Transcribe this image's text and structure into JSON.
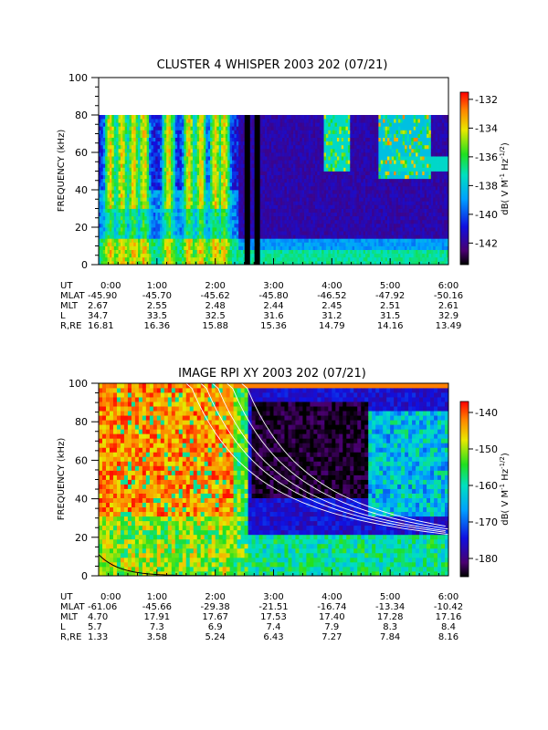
{
  "chart_data": [
    {
      "type": "heatmap",
      "title": "CLUSTER 4 WHISPER 2003 202 (07/21)",
      "ylabel": "FREQUENCY (kHz)",
      "ylim": [
        0,
        100
      ],
      "xlim_hours": [
        0,
        6
      ],
      "y_ticks": [
        "0",
        "20",
        "40",
        "60",
        "80",
        "100"
      ],
      "x_ticks": [
        "0:00",
        "1:00",
        "2:00",
        "3:00",
        "4:00",
        "5:00",
        "6:00"
      ],
      "colorbar": {
        "label": "dB( V M⁻¹ Hz⁻¹ᐟ²)",
        "label_parts": [
          "dB( V M",
          "-1",
          " Hz",
          "-1/2",
          ")"
        ],
        "range": [
          -143.5,
          -131.5
        ],
        "ticks": [
          "-132",
          "-134",
          "-136",
          "-138",
          "-140",
          "-142"
        ],
        "tick_values": [
          -132,
          -134,
          -136,
          -138,
          -140,
          -142
        ]
      },
      "data_top_khz": 80,
      "data_gaps_hours": [
        2.55,
        2.72
      ],
      "ephemeris": {
        "row_labels": [
          "UT",
          "MLAT",
          "MLT",
          "L",
          "R,RE"
        ],
        "UT": [
          "0:00",
          "1:00",
          "2:00",
          "3:00",
          "4:00",
          "5:00",
          "6:00"
        ],
        "MLAT": [
          "-45.90",
          "-45.70",
          "-45.62",
          "-45.80",
          "-46.52",
          "-47.92",
          "-50.16"
        ],
        "MLT": [
          "2.67",
          "2.55",
          "2.48",
          "2.44",
          "2.45",
          "2.51",
          "2.61"
        ],
        "L": [
          "34.7",
          "33.5",
          "32.5",
          "31.6",
          "31.2",
          "31.5",
          "32.9"
        ],
        "R,RE": [
          "16.81",
          "16.36",
          "15.88",
          "15.36",
          "14.79",
          "14.16",
          "13.49"
        ]
      }
    },
    {
      "type": "heatmap",
      "title": "IMAGE RPI XY 2003 202 (07/21)",
      "ylabel": "FREQUENCY (kHz)",
      "ylim": [
        0,
        100
      ],
      "xlim_hours": [
        0,
        6
      ],
      "y_ticks": [
        "0",
        "20",
        "40",
        "60",
        "80",
        "100"
      ],
      "x_ticks": [
        "0:00",
        "1:00",
        "2:00",
        "3:00",
        "4:00",
        "5:00",
        "6:00"
      ],
      "colorbar": {
        "label_parts": [
          "dB( V M",
          "-1",
          " Hz",
          "-1/2",
          ")"
        ],
        "range": [
          -185,
          -137
        ],
        "ticks": [
          "-140",
          "-150",
          "-160",
          "-170",
          "-180"
        ],
        "tick_values": [
          -140,
          -150,
          -160,
          -170,
          -180
        ]
      },
      "ephemeris": {
        "row_labels": [
          "UT",
          "MLAT",
          "MLT",
          "L",
          "R,RE"
        ],
        "UT": [
          "0:00",
          "1:00",
          "2:00",
          "3:00",
          "4:00",
          "5:00",
          "6:00"
        ],
        "MLAT": [
          "-61.06",
          "-45.66",
          "-29.38",
          "-21.51",
          "-16.74",
          "-13.34",
          "-10.42"
        ],
        "MLT": [
          "4.70",
          "17.91",
          "17.67",
          "17.53",
          "17.40",
          "17.28",
          "17.16"
        ],
        "L": [
          "5.7",
          "7.3",
          "6.9",
          "7.4",
          "7.9",
          "8.3",
          "8.4"
        ],
        "R,RE": [
          "1.33",
          "3.58",
          "5.24",
          "6.43",
          "7.27",
          "7.84",
          "8.16"
        ]
      }
    }
  ]
}
